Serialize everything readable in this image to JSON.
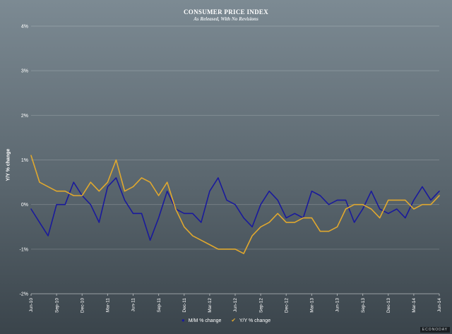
{
  "chart_data": {
    "type": "line",
    "title": "CONSUMER PRICE INDEX",
    "subtitle": "As Released, With No Revisions",
    "ylabel": "Y/Y % change",
    "xlabel": "",
    "ylim": [
      -2,
      4
    ],
    "yticks": [
      "-2%",
      "-1%",
      "0%",
      "1%",
      "2%",
      "3%",
      "4%"
    ],
    "ytick_values": [
      -2,
      -1,
      0,
      1,
      2,
      3,
      4
    ],
    "x_tick_labels": [
      "Jun-10",
      "Sep-10",
      "Dec-10",
      "Mar-11",
      "Jun-11",
      "Sep-11",
      "Dec-11",
      "Mar-12",
      "Jun-12",
      "Sep-12",
      "Dec-12",
      "Mar-13",
      "Jun-13",
      "Sep-13",
      "Dec-13",
      "Mar-14",
      "Jun-14"
    ],
    "x_tick_index": [
      0,
      3,
      6,
      9,
      12,
      15,
      18,
      21,
      24,
      27,
      30,
      33,
      36,
      39,
      42,
      45,
      48
    ],
    "n_points": 49,
    "series": [
      {
        "name": "M/M % change",
        "color": "#1a1a9c",
        "values": [
          -0.1,
          -0.4,
          -0.7,
          0.0,
          0.0,
          0.5,
          0.2,
          0.0,
          -0.4,
          0.4,
          0.6,
          0.1,
          -0.2,
          -0.2,
          -0.8,
          -0.3,
          0.3,
          -0.1,
          -0.2,
          -0.2,
          -0.4,
          0.3,
          0.6,
          0.1,
          0.0,
          -0.3,
          -0.5,
          0.0,
          0.3,
          0.1,
          -0.3,
          -0.2,
          -0.3,
          0.3,
          0.2,
          0.0,
          0.1,
          0.1,
          -0.4,
          -0.1,
          0.3,
          -0.1,
          -0.2,
          -0.1,
          -0.3,
          0.1,
          0.4,
          0.1,
          0.3
        ]
      },
      {
        "name": "Y/Y % change",
        "color": "#e0a82e",
        "values": [
          1.1,
          0.5,
          0.4,
          0.3,
          0.3,
          0.2,
          0.2,
          0.5,
          0.3,
          0.5,
          1.0,
          0.3,
          0.4,
          0.6,
          0.5,
          0.2,
          0.5,
          -0.1,
          -0.5,
          -0.7,
          -0.8,
          -0.9,
          -1.0,
          -1.0,
          -1.0,
          -1.1,
          -0.7,
          -0.5,
          -0.4,
          -0.2,
          -0.4,
          -0.4,
          -0.3,
          -0.3,
          -0.6,
          -0.6,
          -0.5,
          -0.1,
          0.0,
          0.0,
          -0.1,
          -0.3,
          0.1,
          0.1,
          0.1,
          -0.1,
          0.0,
          0.0,
          0.2
        ]
      }
    ],
    "legend_position": "bottom-center"
  },
  "watermark": "ECONODAY"
}
